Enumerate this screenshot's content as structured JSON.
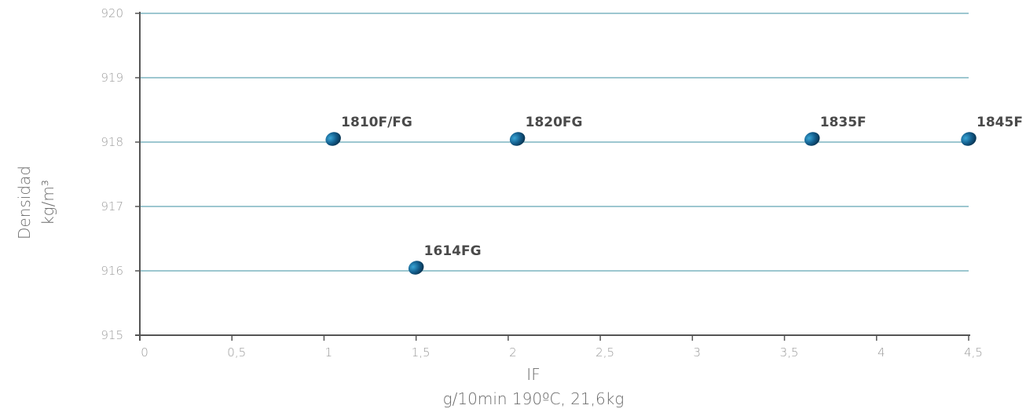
{
  "chart_data": {
    "type": "scatter",
    "title": "",
    "xlabel": "IF",
    "xlabel_sub": "g/10min 190ºC, 21,6kg",
    "ylabel": "Densidad",
    "ylabel_sub": "kg/m³",
    "xlim": [
      0,
      4.5
    ],
    "ylim": [
      915,
      920
    ],
    "x_ticks": [
      0,
      0.5,
      1,
      1.5,
      2,
      2.5,
      3,
      3.5,
      4,
      4.5
    ],
    "x_tick_labels": [
      "0",
      "0,5",
      "1",
      "1,5",
      "2",
      "2,5",
      "3",
      "3,5",
      "4",
      "4,5"
    ],
    "y_ticks": [
      915,
      916,
      917,
      918,
      919,
      920
    ],
    "y_tick_labels": [
      "915",
      "916",
      "917",
      "918",
      "919",
      "920"
    ],
    "grid": "horizontal",
    "points": [
      {
        "label": "1810F/FG",
        "x": 1.05,
        "y": 918
      },
      {
        "label": "1820FG",
        "x": 2.05,
        "y": 918
      },
      {
        "label": "1835F",
        "x": 3.65,
        "y": 918
      },
      {
        "label": "1845F",
        "x": 4.5,
        "y": 918
      },
      {
        "label": "1614FG",
        "x": 1.5,
        "y": 916
      }
    ],
    "colors": {
      "grid": "#3b8fa0",
      "axis": "#555555",
      "marker_light": "#2a8bb8",
      "marker_dark": "#0b3f63"
    }
  }
}
